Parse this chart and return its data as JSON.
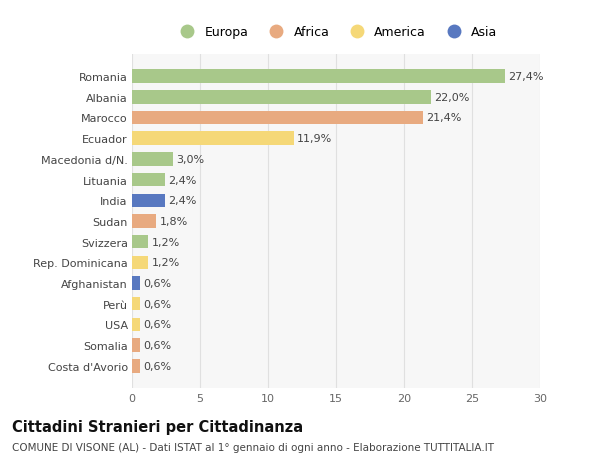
{
  "countries": [
    "Romania",
    "Albania",
    "Marocco",
    "Ecuador",
    "Macedonia d/N.",
    "Lituania",
    "India",
    "Sudan",
    "Svizzera",
    "Rep. Dominicana",
    "Afghanistan",
    "Perù",
    "USA",
    "Somalia",
    "Costa d'Avorio"
  ],
  "values": [
    27.4,
    22.0,
    21.4,
    11.9,
    3.0,
    2.4,
    2.4,
    1.8,
    1.2,
    1.2,
    0.6,
    0.6,
    0.6,
    0.6,
    0.6
  ],
  "labels": [
    "27,4%",
    "22,0%",
    "21,4%",
    "11,9%",
    "3,0%",
    "2,4%",
    "2,4%",
    "1,8%",
    "1,2%",
    "1,2%",
    "0,6%",
    "0,6%",
    "0,6%",
    "0,6%",
    "0,6%"
  ],
  "continents": [
    "Europa",
    "Europa",
    "Africa",
    "America",
    "Europa",
    "Europa",
    "Asia",
    "Africa",
    "Europa",
    "America",
    "Asia",
    "America",
    "America",
    "Africa",
    "Africa"
  ],
  "colors": {
    "Europa": "#a8c88a",
    "Africa": "#e8aa80",
    "America": "#f5d878",
    "Asia": "#5878c0"
  },
  "title": "Cittadini Stranieri per Cittadinanza",
  "subtitle": "COMUNE DI VISONE (AL) - Dati ISTAT al 1° gennaio di ogni anno - Elaborazione TUTTITALIA.IT",
  "xlim": [
    0,
    30
  ],
  "xticks": [
    0,
    5,
    10,
    15,
    20,
    25,
    30
  ],
  "bg_color": "#ffffff",
  "plot_bg_color": "#f7f7f7",
  "grid_color": "#e0e0e0",
  "bar_height": 0.65,
  "label_fontsize": 8,
  "tick_fontsize": 8,
  "title_fontsize": 10.5,
  "subtitle_fontsize": 7.5,
  "legend_fontsize": 9
}
